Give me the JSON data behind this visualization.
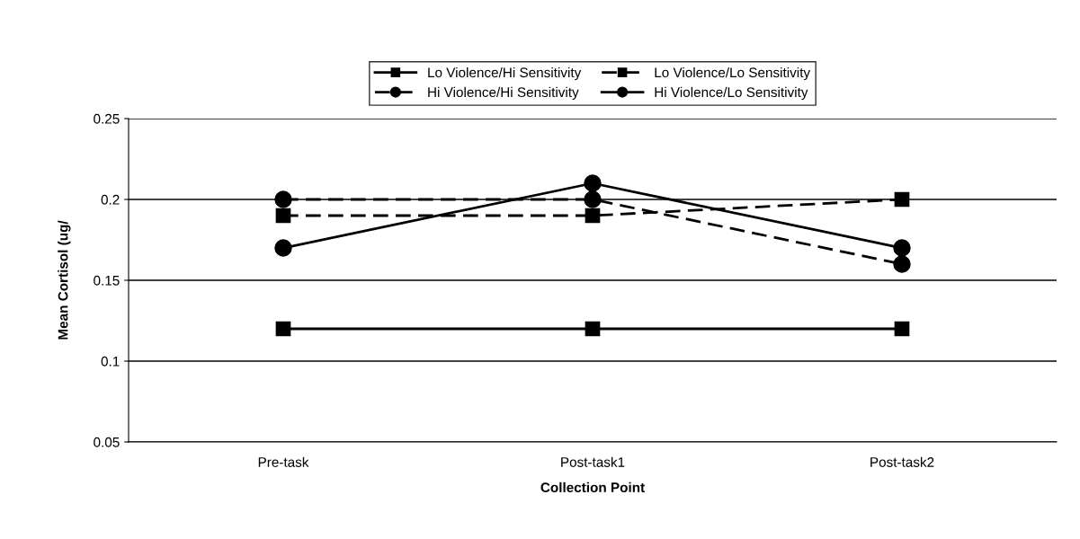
{
  "chart_data": {
    "type": "line",
    "xlabel": "Collection Point",
    "ylabel": "Mean Cortisol (ug/",
    "categories": [
      "Pre-task",
      "Post-task1",
      "Post-task2"
    ],
    "series": [
      {
        "name": "Lo Violence/Hi Sensitivity",
        "color": "#000000",
        "marker": "square",
        "line_style": "solid",
        "values": [
          0.12,
          0.12,
          0.12
        ]
      },
      {
        "name": "Lo Violence/Lo Sensitivity",
        "color": "#000000",
        "marker": "square",
        "line_style": "dashed",
        "values": [
          0.19,
          0.19,
          0.2
        ]
      },
      {
        "name": "Hi Violence/Hi Sensitivity",
        "color": "#000000",
        "marker": "circle",
        "line_style": "dashed",
        "values": [
          0.2,
          0.2,
          0.16
        ]
      },
      {
        "name": "Hi Violence/Lo Sensitivity",
        "color": "#000000",
        "marker": "circle",
        "line_style": "solid",
        "values": [
          0.17,
          0.21,
          0.17
        ]
      }
    ],
    "ylim": [
      0.05,
      0.25
    ],
    "yticks": [
      0.05,
      0.1,
      0.15,
      0.2,
      0.25
    ],
    "grid": "y",
    "legend": "top"
  }
}
